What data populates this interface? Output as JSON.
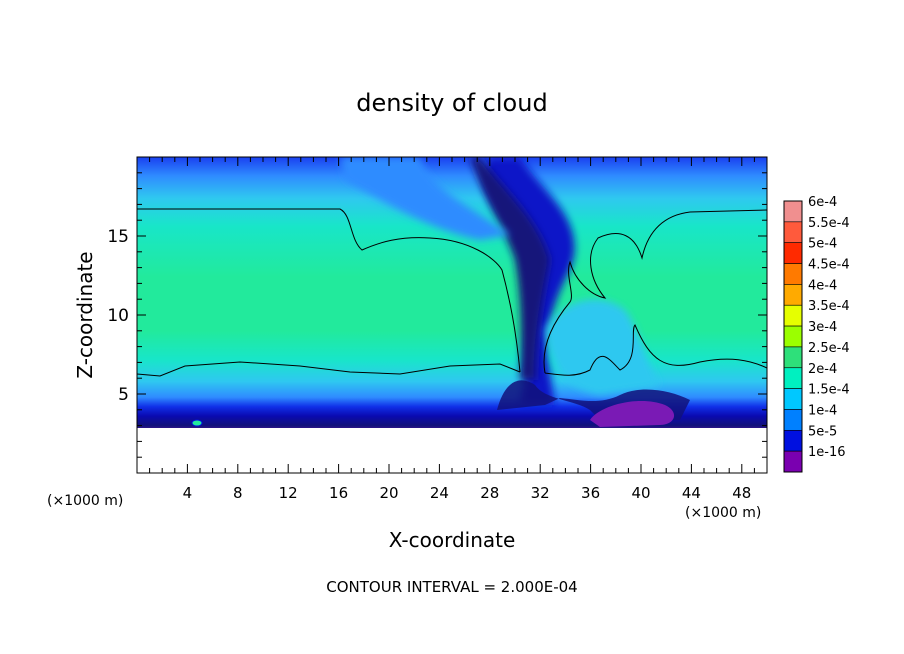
{
  "chart_data": {
    "type": "heatmap",
    "title": "density of cloud",
    "xlabel": "X-coordinate",
    "ylabel": "Z-coordinate",
    "x_unit": "(×1000 m)",
    "x_unit_right": "(×1000 m)",
    "xlim": [
      0,
      50
    ],
    "ylim": [
      0,
      20
    ],
    "xticks": [
      4,
      8,
      12,
      16,
      20,
      24,
      28,
      32,
      36,
      40,
      44,
      48
    ],
    "yticks": [
      5,
      10,
      15
    ],
    "grid": false,
    "footer": "CONTOUR INTERVAL = 2.000E-04",
    "colorbar": {
      "placement": "right",
      "levels": [
        {
          "label": "6e-4",
          "color": "#f08f8f"
        },
        {
          "label": "5.5e-4",
          "color": "#ff5a3c"
        },
        {
          "label": "5e-4",
          "color": "#ff2a00"
        },
        {
          "label": "4.5e-4",
          "color": "#ff7a00"
        },
        {
          "label": "4e-4",
          "color": "#ffaa00"
        },
        {
          "label": "3.5e-4",
          "color": "#e6ff00"
        },
        {
          "label": "3e-4",
          "color": "#9bff00"
        },
        {
          "label": "2.5e-4",
          "color": "#2ee07a"
        },
        {
          "label": "2e-4",
          "color": "#00f0c0"
        },
        {
          "label": "1.5e-4",
          "color": "#00c8ff"
        },
        {
          "label": "1e-4",
          "color": "#0080ff"
        },
        {
          "label": "5e-5",
          "color": "#0010e0"
        },
        {
          "label": "1e-16",
          "color": "#7a00b0"
        }
      ]
    },
    "field_colors": {
      "deep": "#0b12c8",
      "blue": "#1f5cff",
      "lightblue": "#2fa6ff",
      "cyan": "#14e8cc",
      "green": "#22e9a0",
      "purple": "#7a1ab5",
      "darknavy": "#12128a"
    }
  }
}
